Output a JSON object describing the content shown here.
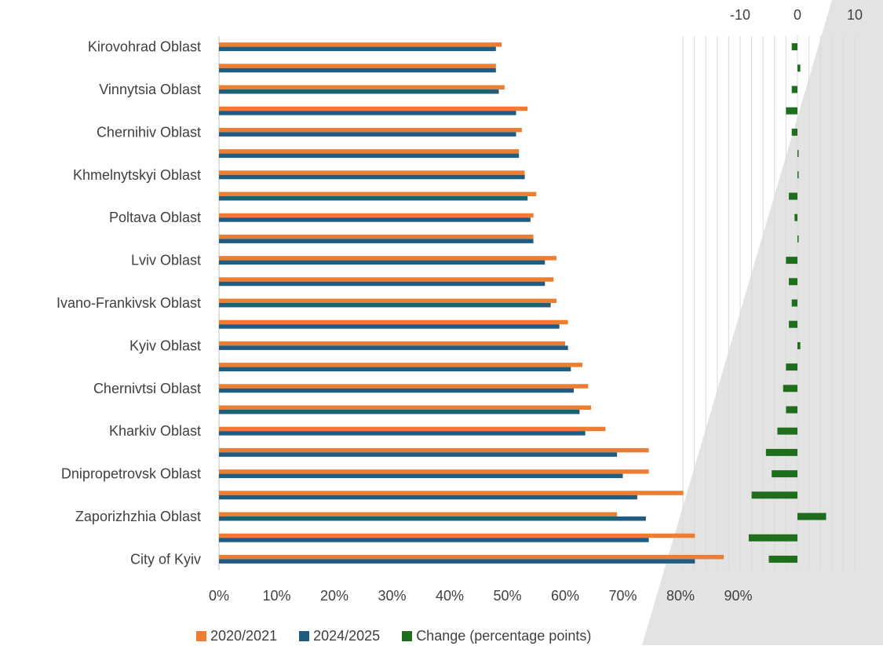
{
  "chart_data": {
    "type": "bar",
    "orientation": "horizontal",
    "categories": [
      "Kirovohrad Oblast",
      "",
      "Vinnytsia Oblast",
      "",
      "Chernihiv Oblast",
      "",
      "Khmelnytskyi Oblast",
      "",
      "Poltava Oblast",
      "",
      "Lviv Oblast",
      "",
      "Ivano-Frankivsk Oblast",
      "",
      "Kyiv Oblast",
      "",
      "Chernivtsi Oblast",
      "",
      "Kharkiv Oblast",
      "",
      "Dnipropetrovsk Oblast",
      "",
      "Zaporizhzhia Oblast",
      "",
      "City of Kyiv"
    ],
    "series": [
      {
        "name": "2020/2021",
        "color": "#ED7D31",
        "axis": "bottom",
        "values": [
          49,
          48,
          49.5,
          53.5,
          52.5,
          52,
          53,
          55,
          54.5,
          54.5,
          58.5,
          58,
          58.5,
          60.5,
          60,
          63,
          64,
          64.5,
          67,
          74.5,
          74.5,
          80.5,
          69,
          82.5,
          87.5
        ]
      },
      {
        "name": "2024/2025",
        "color": "#1F5C7F",
        "axis": "bottom",
        "values": [
          48,
          48,
          48.5,
          51.5,
          51.5,
          52,
          53,
          53.5,
          54,
          54.5,
          56.5,
          56.5,
          57.5,
          59,
          60.5,
          61,
          61.5,
          62.5,
          63.5,
          69,
          70,
          72.5,
          74,
          74.5,
          82.5
        ]
      },
      {
        "name": "Change (percentage points)",
        "color": "#1E6E1E",
        "axis": "top",
        "values": [
          -1,
          0.5,
          -1,
          -2,
          -1,
          0,
          0,
          -1.5,
          -0.5,
          0,
          -2,
          -1.5,
          -1,
          -1.5,
          0.5,
          -2,
          -2.5,
          -2,
          -3.5,
          -5.5,
          -4.5,
          -8,
          5,
          -8.5,
          -5
        ]
      }
    ],
    "x_bottom": {
      "ticks": [
        "0%",
        "10%",
        "20%",
        "30%",
        "40%",
        "50%",
        "60%",
        "70%",
        "80%",
        "90%"
      ],
      "range": [
        0,
        100
      ]
    },
    "x_top": {
      "ticks": [
        "-10",
        "0",
        "10"
      ],
      "range": [
        -10,
        10
      ]
    },
    "grid": true,
    "legend": {
      "position": "bottom"
    }
  }
}
